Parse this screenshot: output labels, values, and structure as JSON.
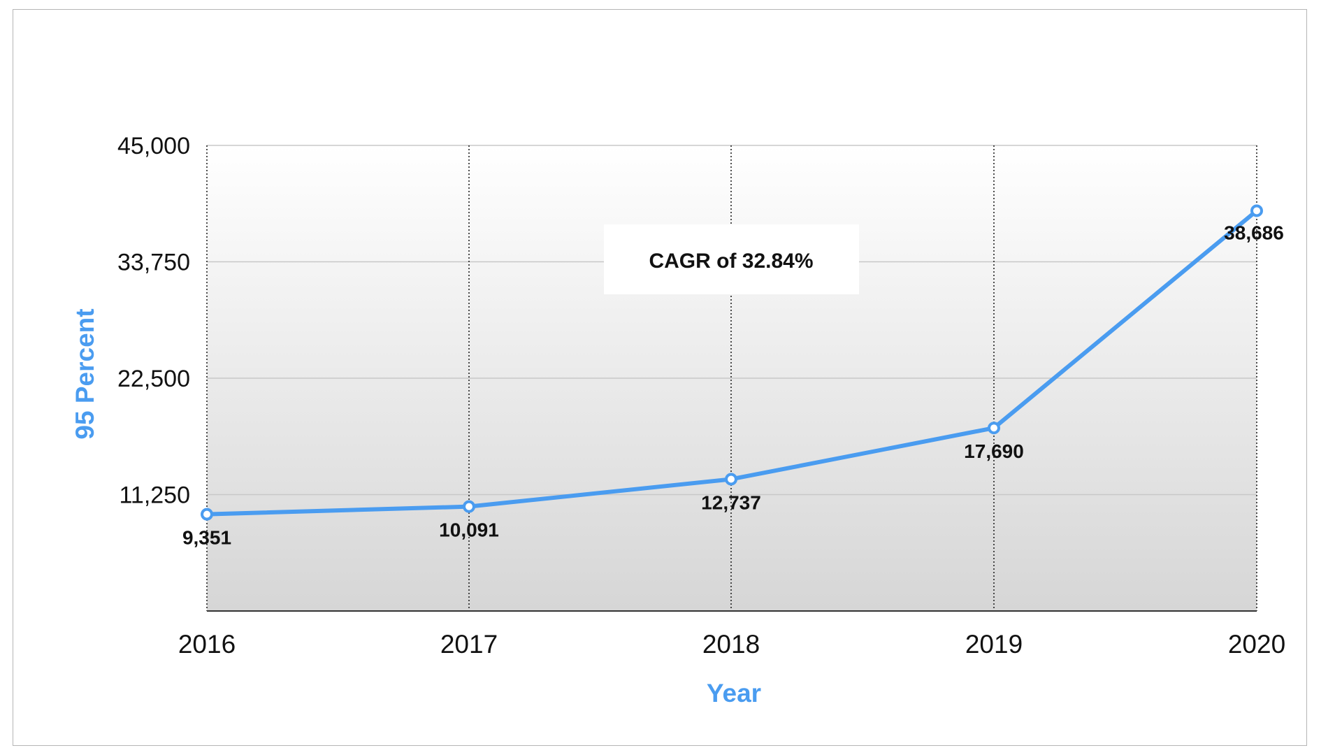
{
  "chart_data": {
    "type": "line",
    "title": "",
    "xlabel": "Year",
    "ylabel": "95 Percent",
    "categories": [
      "2016",
      "2017",
      "2018",
      "2019",
      "2020"
    ],
    "series": [
      {
        "values": [
          9351,
          10091,
          12737,
          17690,
          38686
        ],
        "data_labels": [
          "9,351",
          "10,091",
          "12,737",
          "17,690",
          "38,686"
        ]
      }
    ],
    "ylim": [
      0,
      45000
    ],
    "y_ticks": [
      {
        "value": 11250,
        "label": "11,250"
      },
      {
        "value": 22500,
        "label": "22,500"
      },
      {
        "value": 33750,
        "label": "33,750"
      },
      {
        "value": 45000,
        "label": "45,000"
      }
    ],
    "annotation": "CAGR of 32.84%",
    "grid": {
      "horizontal": true,
      "vertical_dotted": true
    },
    "legend": "none",
    "colors": {
      "line": "#4a9cf0",
      "axis_title": "#4a9cf0",
      "grid": "#c8c8c8",
      "plot_bg_top": "#ffffff",
      "plot_bg_bottom": "#d6d6d6"
    }
  }
}
